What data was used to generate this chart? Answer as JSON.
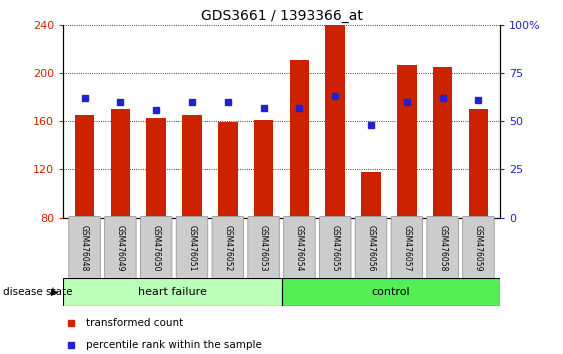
{
  "title": "GDS3661 / 1393366_at",
  "samples": [
    "GSM476048",
    "GSM476049",
    "GSM476050",
    "GSM476051",
    "GSM476052",
    "GSM476053",
    "GSM476054",
    "GSM476055",
    "GSM476056",
    "GSM476057",
    "GSM476058",
    "GSM476059"
  ],
  "red_values": [
    165,
    170,
    163,
    165,
    159,
    161,
    211,
    240,
    118,
    207,
    205,
    170
  ],
  "blue_values": [
    62,
    60,
    56,
    60,
    60,
    57,
    57,
    63,
    48,
    60,
    62,
    61
  ],
  "ylim_left": [
    80,
    240
  ],
  "ylim_right": [
    0,
    100
  ],
  "yticks_left": [
    80,
    120,
    160,
    200,
    240
  ],
  "yticks_right": [
    0,
    25,
    50,
    75,
    100
  ],
  "heart_failure_count": 6,
  "control_count": 6,
  "bar_color": "#cc2200",
  "blue_color": "#2222cc",
  "plot_bg": "#ffffff",
  "bar_width": 0.55,
  "bar_bottom": 80,
  "hf_color": "#bbffbb",
  "ctrl_color": "#55ee55",
  "label_bg": "#cccccc",
  "label_edge": "#999999"
}
